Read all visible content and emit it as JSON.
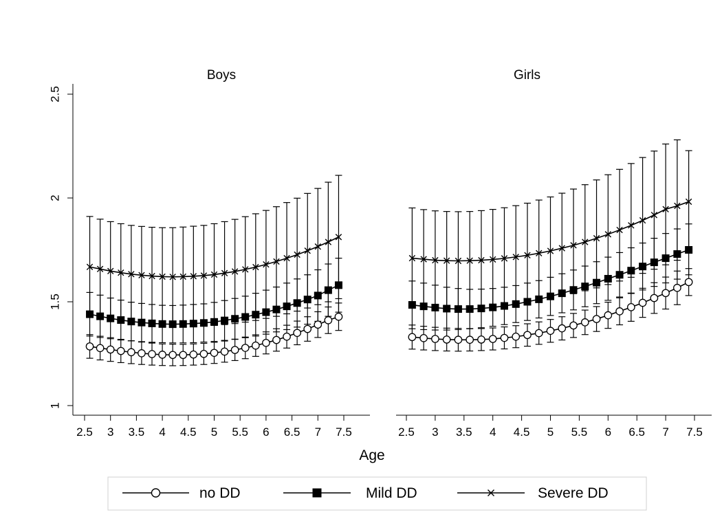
{
  "chart_data": {
    "type": "line",
    "xlabel": "Age",
    "ylabel": "",
    "ylim": [
      1,
      2.5
    ],
    "yticks": [
      1,
      1.5,
      2,
      2.5
    ],
    "yticklabels": [
      "1",
      "1.5",
      "2",
      "2.5"
    ],
    "xlim": [
      2.5,
      7.5
    ],
    "xticks": [
      2.5,
      3,
      3.5,
      4,
      4.5,
      5,
      5.5,
      6,
      6.5,
      7,
      7.5
    ],
    "xticklabels": [
      "2.5",
      "3",
      "3.5",
      "4",
      "4.5",
      "5",
      "5.5",
      "6",
      "6.5",
      "7",
      "7.5"
    ],
    "x": [
      2.6,
      2.8,
      3.0,
      3.2,
      3.4,
      3.6,
      3.8,
      4.0,
      4.2,
      4.4,
      4.6,
      4.8,
      5.0,
      5.2,
      5.4,
      5.6,
      5.8,
      6.0,
      6.2,
      6.4,
      6.6,
      6.8,
      7.0,
      7.2,
      7.4
    ],
    "legend_position": "bottom",
    "grid": false,
    "panels": [
      {
        "title": "Boys",
        "series": [
          {
            "name": "no DD",
            "marker": "open-circle",
            "values": [
              1.285,
              1.277,
              1.27,
              1.263,
              1.257,
              1.252,
              1.248,
              1.245,
              1.244,
              1.244,
              1.246,
              1.249,
              1.254,
              1.26,
              1.268,
              1.278,
              1.289,
              1.302,
              1.316,
              1.332,
              1.35,
              1.369,
              1.39,
              1.411,
              1.428
            ],
            "lower": [
              1.228,
              1.22,
              1.213,
              1.207,
              1.202,
              1.198,
              1.195,
              1.193,
              1.192,
              1.193,
              1.195,
              1.198,
              1.203,
              1.209,
              1.217,
              1.226,
              1.237,
              1.249,
              1.262,
              1.277,
              1.293,
              1.31,
              1.328,
              1.347,
              1.362
            ],
            "upper": [
              1.342,
              1.334,
              1.327,
              1.319,
              1.312,
              1.306,
              1.301,
              1.297,
              1.296,
              1.295,
              1.297,
              1.3,
              1.305,
              1.311,
              1.319,
              1.33,
              1.341,
              1.355,
              1.37,
              1.387,
              1.407,
              1.428,
              1.452,
              1.475,
              1.494
            ]
          },
          {
            "name": "Mild DD",
            "marker": "filled-square",
            "values": [
              1.44,
              1.43,
              1.42,
              1.412,
              1.405,
              1.4,
              1.396,
              1.393,
              1.392,
              1.393,
              1.395,
              1.398,
              1.403,
              1.41,
              1.418,
              1.427,
              1.438,
              1.45,
              1.463,
              1.478,
              1.494,
              1.511,
              1.53,
              1.556,
              1.58
            ],
            "lower": [
              1.335,
              1.328,
              1.322,
              1.316,
              1.312,
              1.308,
              1.305,
              1.303,
              1.302,
              1.302,
              1.303,
              1.306,
              1.309,
              1.314,
              1.32,
              1.327,
              1.335,
              1.344,
              1.355,
              1.366,
              1.378,
              1.392,
              1.406,
              1.43,
              1.45
            ],
            "upper": [
              1.545,
              1.532,
              1.518,
              1.508,
              1.498,
              1.492,
              1.487,
              1.483,
              1.482,
              1.484,
              1.487,
              1.49,
              1.497,
              1.506,
              1.516,
              1.527,
              1.541,
              1.556,
              1.571,
              1.59,
              1.61,
              1.63,
              1.654,
              1.682,
              1.71
            ]
          },
          {
            "name": "Severe DD",
            "marker": "x",
            "values": [
              1.668,
              1.658,
              1.648,
              1.64,
              1.633,
              1.628,
              1.624,
              1.621,
              1.62,
              1.621,
              1.623,
              1.626,
              1.631,
              1.638,
              1.646,
              1.656,
              1.667,
              1.68,
              1.694,
              1.71,
              1.727,
              1.746,
              1.766,
              1.788,
              1.812
            ],
            "lower": [
              1.425,
              1.418,
              1.412,
              1.404,
              1.398,
              1.393,
              1.389,
              1.385,
              1.383,
              1.382,
              1.382,
              1.384,
              1.386,
              1.39,
              1.395,
              1.402,
              1.41,
              1.42,
              1.43,
              1.442,
              1.455,
              1.47,
              1.486,
              1.5,
              1.515
            ],
            "upper": [
              1.911,
              1.898,
              1.886,
              1.876,
              1.868,
              1.863,
              1.859,
              1.857,
              1.857,
              1.86,
              1.864,
              1.868,
              1.876,
              1.886,
              1.897,
              1.91,
              1.924,
              1.94,
              1.958,
              1.978,
              1.999,
              2.022,
              2.046,
              2.076,
              2.109
            ]
          }
        ]
      },
      {
        "title": "Girls",
        "series": [
          {
            "name": "no DD",
            "marker": "open-circle",
            "values": [
              1.33,
              1.325,
              1.321,
              1.318,
              1.317,
              1.317,
              1.318,
              1.321,
              1.326,
              1.332,
              1.34,
              1.349,
              1.36,
              1.372,
              1.386,
              1.401,
              1.417,
              1.435,
              1.454,
              1.474,
              1.495,
              1.518,
              1.542,
              1.567,
              1.595
            ],
            "lower": [
              1.272,
              1.268,
              1.265,
              1.263,
              1.262,
              1.263,
              1.265,
              1.268,
              1.273,
              1.279,
              1.286,
              1.295,
              1.305,
              1.316,
              1.328,
              1.342,
              1.357,
              1.372,
              1.389,
              1.406,
              1.425,
              1.444,
              1.465,
              1.486,
              1.53
            ],
            "upper": [
              1.388,
              1.382,
              1.377,
              1.373,
              1.372,
              1.371,
              1.371,
              1.374,
              1.379,
              1.385,
              1.394,
              1.403,
              1.415,
              1.428,
              1.444,
              1.46,
              1.477,
              1.498,
              1.519,
              1.542,
              1.565,
              1.592,
              1.619,
              1.648,
              1.66
            ]
          },
          {
            "name": "Mild DD",
            "marker": "filled-square",
            "values": [
              1.485,
              1.478,
              1.472,
              1.467,
              1.465,
              1.465,
              1.468,
              1.473,
              1.48,
              1.489,
              1.5,
              1.512,
              1.526,
              1.541,
              1.557,
              1.574,
              1.592,
              1.611,
              1.63,
              1.65,
              1.67,
              1.69,
              1.71,
              1.73,
              1.75
            ],
            "lower": [
              1.37,
              1.366,
              1.364,
              1.364,
              1.366,
              1.37,
              1.375,
              1.382,
              1.39,
              1.4,
              1.41,
              1.422,
              1.434,
              1.447,
              1.461,
              1.476,
              1.491,
              1.507,
              1.523,
              1.54,
              1.557,
              1.574,
              1.591,
              1.609,
              1.63
            ],
            "upper": [
              1.6,
              1.59,
              1.58,
              1.57,
              1.564,
              1.56,
              1.561,
              1.564,
              1.57,
              1.578,
              1.59,
              1.602,
              1.618,
              1.635,
              1.653,
              1.672,
              1.693,
              1.715,
              1.737,
              1.76,
              1.783,
              1.806,
              1.829,
              1.851,
              1.875
            ]
          },
          {
            "name": "Severe DD",
            "marker": "x",
            "values": [
              1.71,
              1.705,
              1.7,
              1.698,
              1.697,
              1.698,
              1.7,
              1.704,
              1.709,
              1.716,
              1.724,
              1.734,
              1.745,
              1.758,
              1.772,
              1.788,
              1.806,
              1.825,
              1.846,
              1.868,
              1.892,
              1.918,
              1.946,
              1.962,
              1.982
            ],
            "lower": [
              1.47,
              1.468,
              1.467,
              1.466,
              1.467,
              1.469,
              1.472,
              1.476,
              1.481,
              1.488,
              1.496,
              1.505,
              1.515,
              1.527,
              1.539,
              1.553,
              1.567,
              1.583,
              1.6,
              1.618,
              1.637,
              1.657,
              1.678,
              1.7,
              1.735
            ],
            "upper": [
              1.952,
              1.944,
              1.938,
              1.935,
              1.934,
              1.935,
              1.939,
              1.945,
              1.953,
              1.963,
              1.975,
              1.99,
              2.005,
              2.023,
              2.043,
              2.064,
              2.087,
              2.112,
              2.138,
              2.166,
              2.195,
              2.226,
              2.26,
              2.28,
              2.228
            ]
          }
        ]
      }
    ],
    "legend": [
      {
        "name": "no DD",
        "marker": "open-circle"
      },
      {
        "name": "Mild DD",
        "marker": "filled-square"
      },
      {
        "name": "Severe DD",
        "marker": "x"
      }
    ]
  }
}
